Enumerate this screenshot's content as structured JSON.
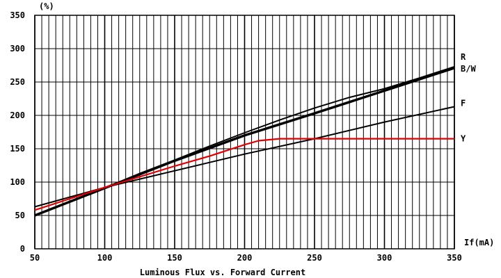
{
  "chart_data": {
    "type": "line",
    "title": "Luminous Flux vs. Forward Current",
    "xlabel": "If(mA)",
    "ylabel": "(%)",
    "xlim": [
      50,
      350
    ],
    "ylim": [
      0,
      350
    ],
    "x_ticks": [
      50,
      100,
      150,
      200,
      250,
      300,
      350
    ],
    "y_ticks": [
      0,
      50,
      100,
      150,
      200,
      250,
      300,
      350
    ],
    "x_minor_step": 5,
    "y_grid_step": 50,
    "grid": true,
    "legend": "labels at right end of each line",
    "series": [
      {
        "name": "R",
        "color": "#000000",
        "x": [
          50,
          75,
          100,
          125,
          150,
          175,
          200,
          225,
          250,
          275,
          300,
          325,
          350
        ],
        "y": [
          50,
          71,
          91,
          113,
          133,
          154,
          174,
          193,
          211,
          227,
          240,
          256,
          273
        ]
      },
      {
        "name": "B/W",
        "color": "#000000",
        "x": [
          50,
          100,
          150,
          200,
          250,
          300,
          350
        ],
        "y": [
          50,
          91,
          132,
          170,
          203,
          237,
          271
        ]
      },
      {
        "name": "F",
        "color": "#000000",
        "x": [
          50,
          100,
          150,
          200,
          250,
          300,
          350
        ],
        "y": [
          63,
          92,
          117,
          142,
          165,
          190,
          213
        ]
      },
      {
        "name": "Y",
        "color": "#e00000",
        "x": [
          50,
          100,
          150,
          175,
          200,
          210,
          225,
          250,
          300,
          350
        ],
        "y": [
          58,
          92,
          124,
          139,
          156,
          162,
          165,
          165,
          165,
          165
        ]
      }
    ]
  }
}
